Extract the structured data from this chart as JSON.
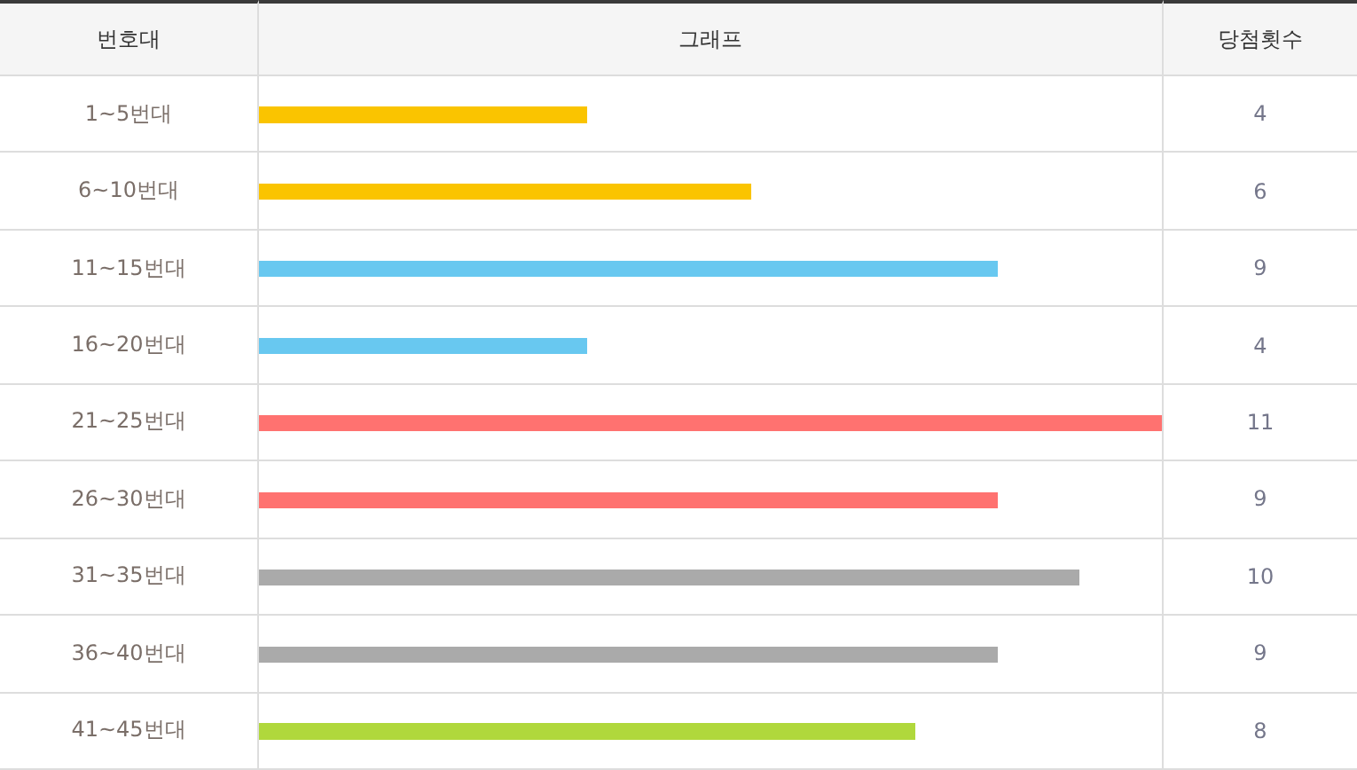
{
  "chart_data": {
    "type": "bar",
    "orientation": "horizontal",
    "title": "그래프",
    "ylabel": "번호대",
    "xlabel": "당첨횟수",
    "categories": [
      "1~5번대",
      "6~10번대",
      "11~15번대",
      "16~20번대",
      "21~25번대",
      "26~30번대",
      "31~35번대",
      "36~40번대",
      "41~45번대"
    ],
    "values": [
      4,
      6,
      9,
      4,
      11,
      9,
      10,
      9,
      8
    ],
    "colors": [
      "#fac400",
      "#fac400",
      "#68c8f0",
      "#68c8f0",
      "#ff7270",
      "#ff7270",
      "#aaaaaa",
      "#aaaaaa",
      "#b0d83c"
    ],
    "xlim": [
      0,
      11
    ],
    "data_labels": true,
    "tick_labels": "y"
  }
}
